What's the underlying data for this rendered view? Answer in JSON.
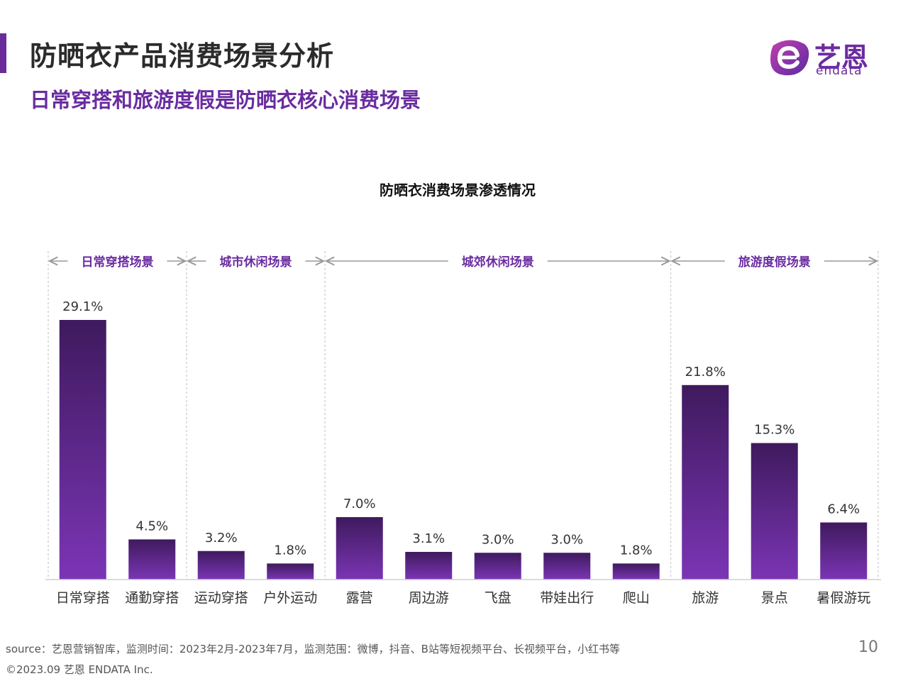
{
  "header": {
    "title": "防晒衣产品消费场景分析",
    "subtitle": "日常穿搭和旅游度假是防晒衣核心消费场景"
  },
  "logo": {
    "text_cn": "艺恩",
    "text_en": "endata"
  },
  "colors": {
    "accent": "#6a2c9a",
    "bar_top": "#3f1a5e",
    "bar_bottom": "#7b35b5",
    "group_label": "#6a2ca0"
  },
  "chart_data": {
    "type": "bar",
    "title": "防晒衣消费场景渗透情况",
    "xlabel": "",
    "ylabel": "",
    "ylim": [
      0,
      30
    ],
    "grid": false,
    "categories": [
      "日常穿搭",
      "通勤穿搭",
      "运动穿搭",
      "户外运动",
      "露营",
      "周边游",
      "飞盘",
      "带娃出行",
      "爬山",
      "旅游",
      "景点",
      "暑假游玩"
    ],
    "values": [
      29.1,
      4.5,
      3.2,
      1.8,
      7.0,
      3.1,
      3.0,
      3.0,
      1.8,
      21.8,
      15.3,
      6.4
    ],
    "value_labels": [
      "29.1%",
      "4.5%",
      "3.2%",
      "1.8%",
      "7.0%",
      "3.1%",
      "3.0%",
      "3.0%",
      "1.8%",
      "21.8%",
      "15.3%",
      "6.4%"
    ],
    "groups": [
      {
        "name": "日常穿搭场景",
        "start": 0,
        "end": 1
      },
      {
        "name": "城市休闲场景",
        "start": 2,
        "end": 3
      },
      {
        "name": "城郊休闲场景",
        "start": 4,
        "end": 8
      },
      {
        "name": "旅游度假场景",
        "start": 9,
        "end": 11
      }
    ]
  },
  "footer": {
    "source": "source：艺恩营销智库，监测时间：2023年2月-2023年7月，监测范围：微博，抖音、B站等短视频平台、长视频平台，小红书等",
    "copyright": "©2023.09 艺恩 ENDATA Inc.",
    "page_number": "10"
  }
}
